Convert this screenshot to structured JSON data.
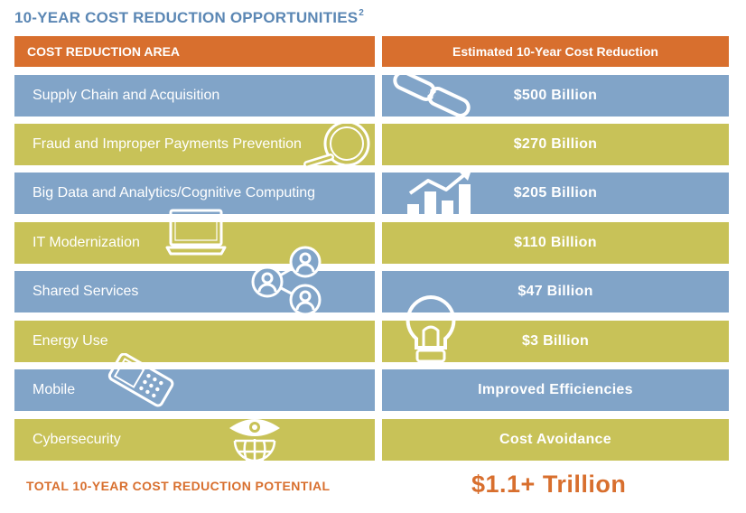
{
  "title": {
    "text": "10-YEAR COST REDUCTION OPPORTUNITIES",
    "footnote": "2"
  },
  "header": {
    "left": "COST REDUCTION AREA",
    "right": "Estimated 10-Year Cost Reduction"
  },
  "rows": [
    {
      "area": "Supply Chain and Acquisition",
      "value": "$500 Billion",
      "icon": "chain-link-icon"
    },
    {
      "area": "Fraud and Improper Payments Prevention",
      "value": "$270 Billion",
      "icon": "magnifying-glass-icon"
    },
    {
      "area": "Big Data and Analytics/Cognitive Computing",
      "value": "$205 Billion",
      "icon": "bar-chart-icon"
    },
    {
      "area": "IT Modernization",
      "value": "$110 Billion",
      "icon": "laptop-icon"
    },
    {
      "area": "Shared Services",
      "value": "$47 Billion",
      "icon": "people-network-icon"
    },
    {
      "area": "Energy Use",
      "value": "$3 Billion",
      "icon": "lightbulb-icon"
    },
    {
      "area": "Mobile",
      "value": "Improved Efficiencies",
      "icon": "mobile-phone-icon"
    },
    {
      "area": "Cybersecurity",
      "value": "Cost Avoidance",
      "icon": "eye-globe-icon"
    }
  ],
  "total": {
    "label": "TOTAL 10-YEAR COST REDUCTION POTENTIAL",
    "value": "$1.1+ Trillion"
  },
  "colors": {
    "orange": "#d86f2e",
    "blue": "#81a4c8",
    "olive": "#c8c258",
    "title_blue": "#5b87b4"
  }
}
